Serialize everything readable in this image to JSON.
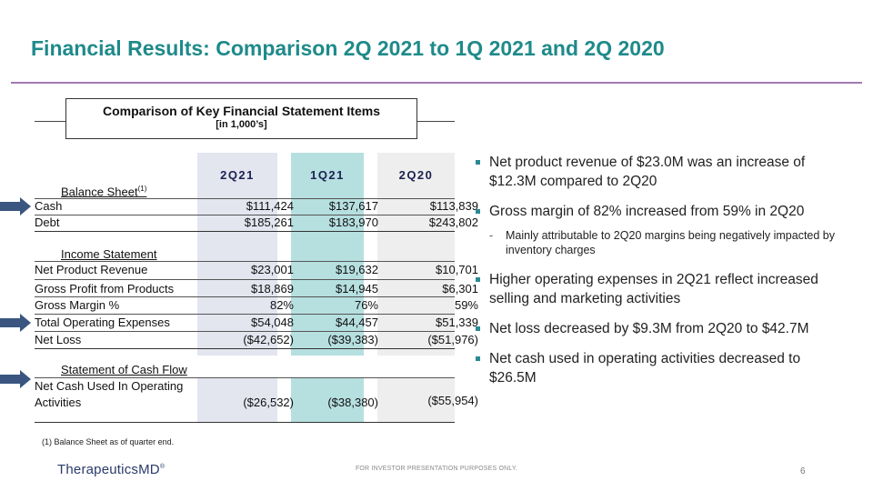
{
  "title": "Financial Results: Comparison 2Q 2021 to 1Q 2021 and 2Q 2020",
  "table_header": {
    "title": "Comparison of Key Financial Statement Items",
    "subtitle": "[in 1,000’s]"
  },
  "columns": [
    "2Q21",
    "1Q21",
    "2Q20"
  ],
  "sections": {
    "balance_sheet": "Balance Sheet",
    "balance_sheet_note": "(1)",
    "income_statement": "Income Statement",
    "cash_flow": "Statement of Cash Flow"
  },
  "rows": [
    {
      "label": "Cash",
      "values": [
        "$111,424",
        "$137,617",
        "$113,839"
      ]
    },
    {
      "label": "Debt",
      "values": [
        "$185,261",
        "$183,970",
        "$243,802"
      ]
    },
    {
      "label": "Net Product Revenue",
      "values": [
        "$23,001",
        "$19,632",
        "$10,701"
      ]
    },
    {
      "label": "Gross Profit from Products",
      "values": [
        "$18,869",
        "$14,945",
        "$6,301"
      ]
    },
    {
      "label": "Gross Margin %",
      "values": [
        "82%",
        "76%",
        "59%"
      ]
    },
    {
      "label": "Total Operating Expenses",
      "values": [
        "$54,048",
        "$44,457",
        "$51,339"
      ]
    },
    {
      "label": "Net Loss",
      "values": [
        "($42,652)",
        "($39,383)",
        "($51,976)"
      ]
    },
    {
      "label_line1": "Net Cash Used In Operating",
      "label_line2": "Activities",
      "values": [
        "($26,532)",
        "($38,380)",
        "($55,954)"
      ]
    }
  ],
  "footnote": "(1)  Balance Sheet as of quarter end.",
  "bullets": [
    "Net product revenue of $23.0M was an increase of $12.3M compared to 2Q20",
    "Gross margin of 82% increased from 59% in 2Q20",
    "Mainly attributable to 2Q20 margins being negatively impacted by inventory charges",
    "Higher operating expenses in 2Q21 reflect increased selling and marketing activities",
    "Net loss decreased by $9.3M from 2Q20 to $42.7M",
    "Net cash used in operating activities decreased to $26.5M"
  ],
  "logo": "TherapeuticsMD",
  "logo_mark": "®",
  "disclaimer": "FOR INVESTOR PRESENTATION PURPOSES ONLY.",
  "page_number": "6",
  "colors": {
    "title": "#1f8a8a",
    "accent_rule": "#a07ab0",
    "arrow": "#3a5680",
    "bullet": "#2a8a92"
  },
  "icons": [
    "right-arrow-icon"
  ]
}
